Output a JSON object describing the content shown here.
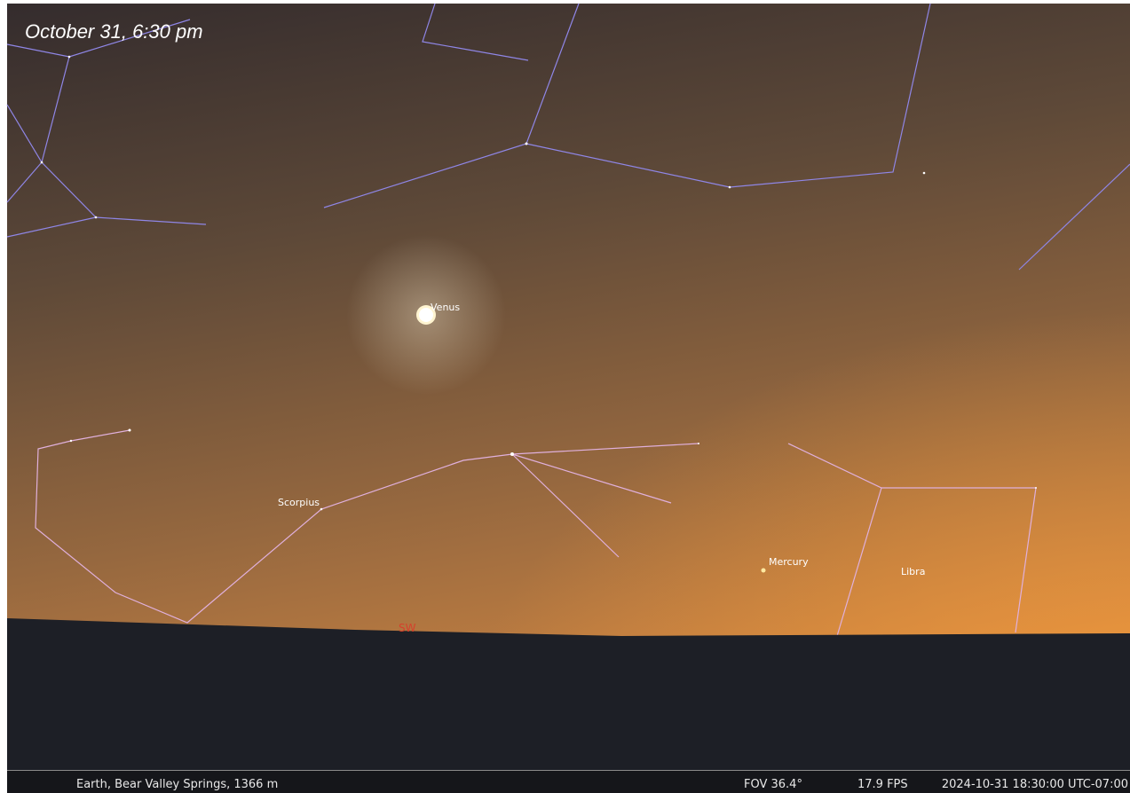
{
  "caption": "October 31, 6:30 pm",
  "sky_labels": {
    "venus": "Venus",
    "scorpius": "Scorpius",
    "mercury": "Mercury",
    "libra": "Libra",
    "compass": "SW"
  },
  "status_bar": {
    "location": "Earth, Bear Valley Springs, 1366 m",
    "fov": "FOV 36.4°",
    "fps": "17.9 FPS",
    "datetime": "2024-10-31 18:30:00 UTC-07:00"
  }
}
